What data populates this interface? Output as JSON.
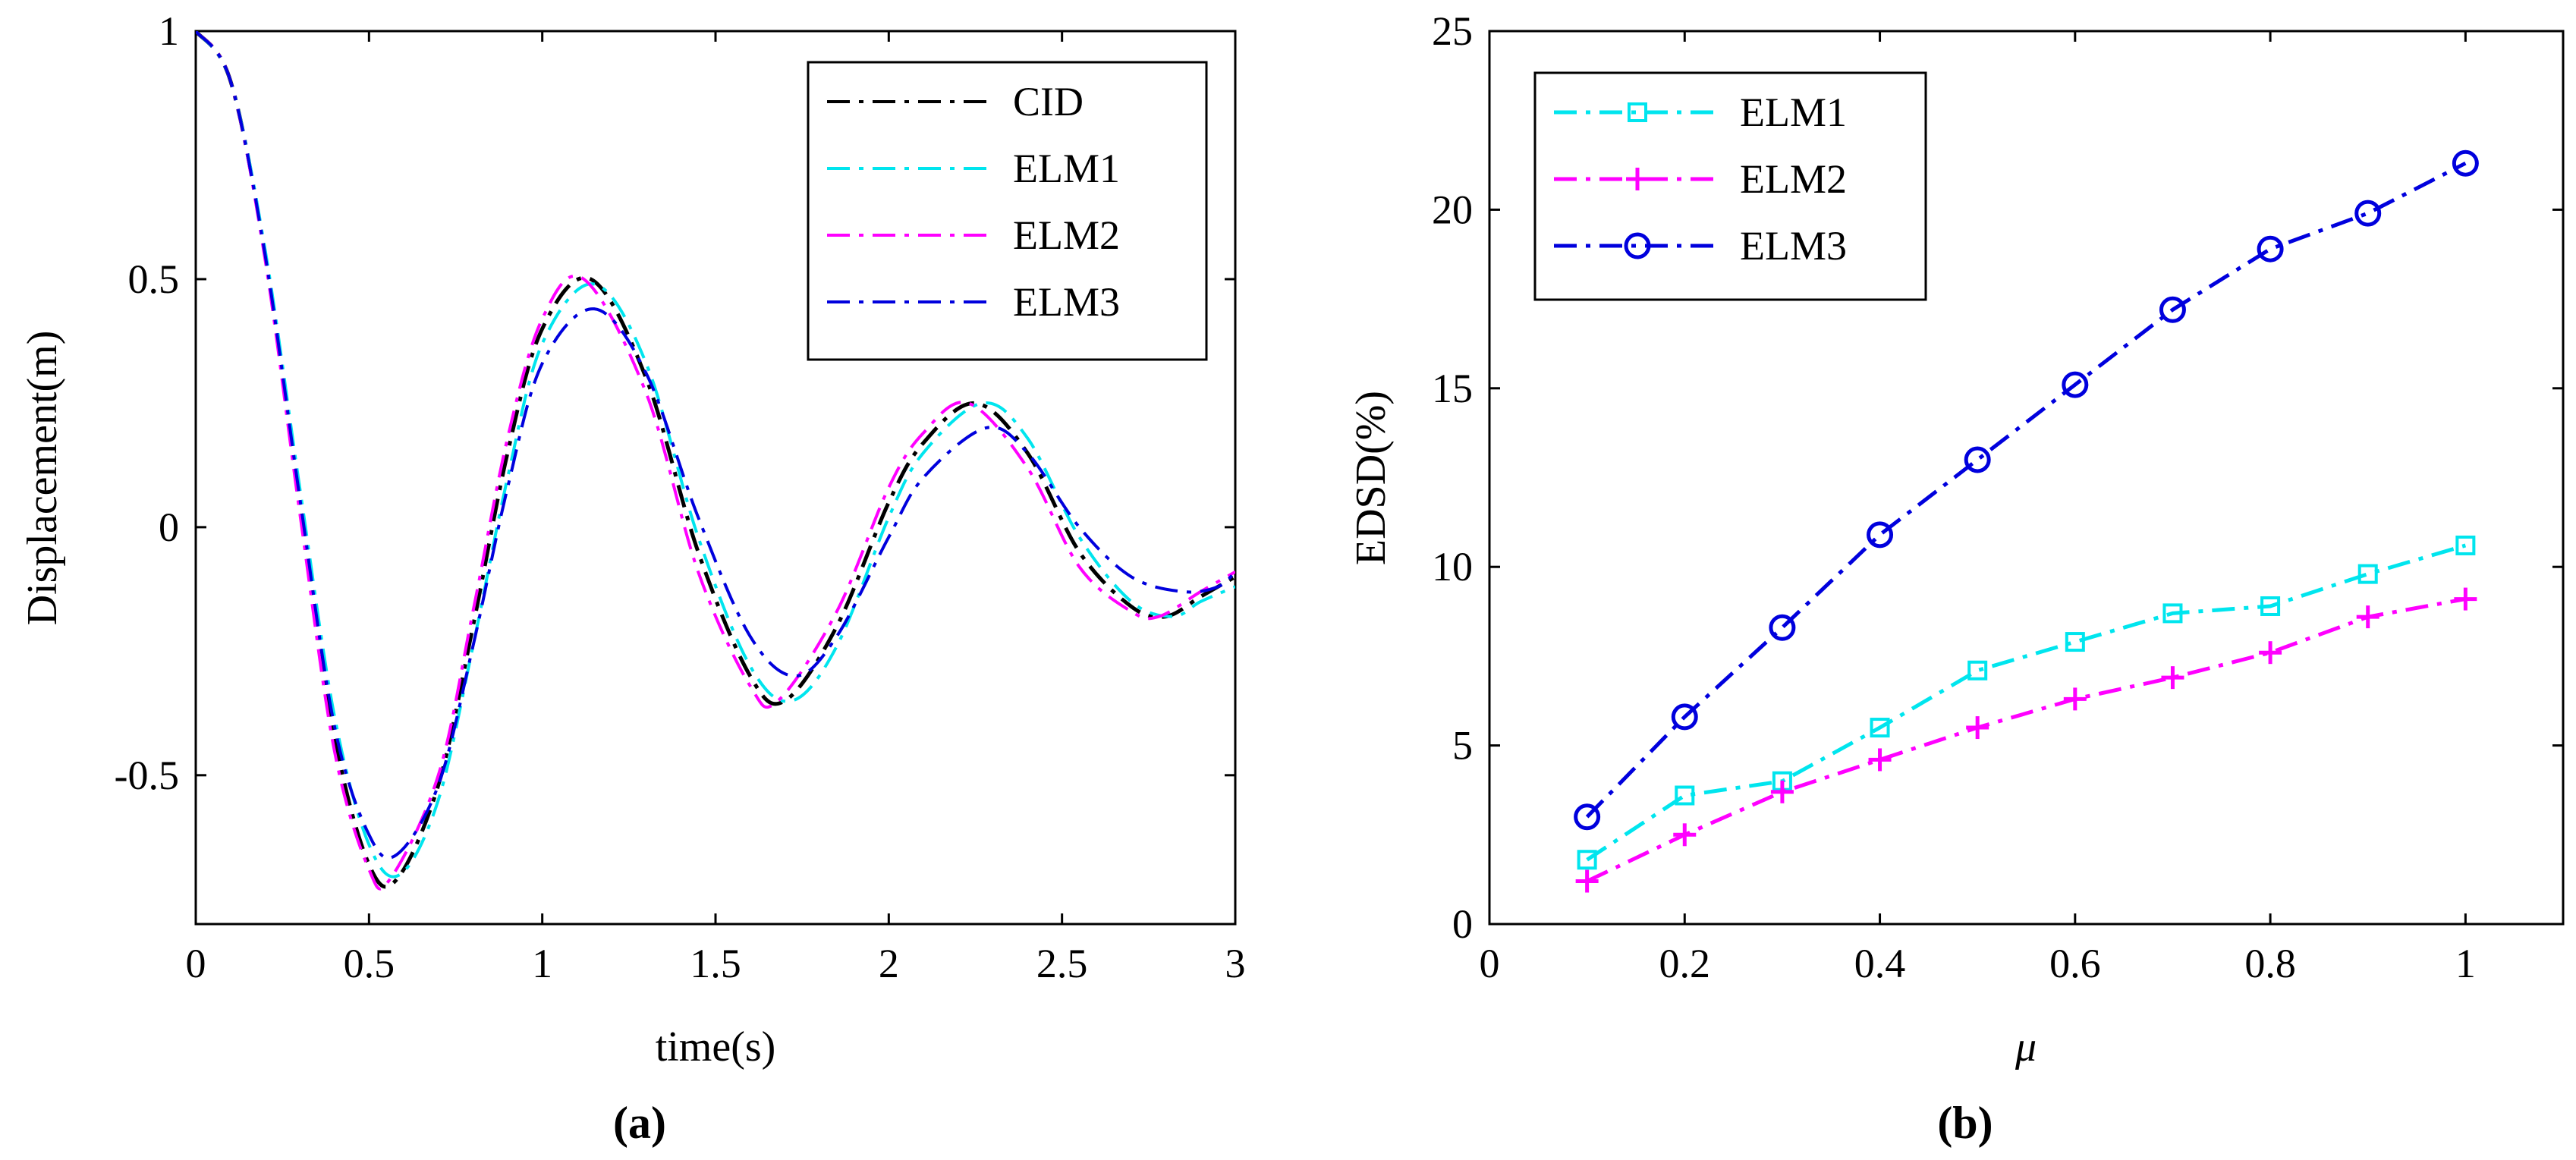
{
  "chart_data": [
    {
      "type": "line",
      "panel_label": "(a)",
      "xlabel": "time(s)",
      "ylabel": "Displacement(m)",
      "xlim": [
        0,
        3
      ],
      "ylim": [
        -0.8,
        1
      ],
      "xticks": [
        0,
        0.5,
        1,
        1.5,
        2,
        2.5,
        3
      ],
      "xtick_labels": [
        "0",
        "0.5",
        "1",
        "1.5",
        "2",
        "2.5",
        "3"
      ],
      "yticks": [
        -0.5,
        0,
        0.5,
        1
      ],
      "ytick_labels": [
        "-0.5",
        "0",
        "0.5",
        "1"
      ],
      "legend_position": "top-right",
      "series": [
        {
          "name": "CID",
          "color": "#000000",
          "marker": "none",
          "x": [
            0,
            0.1,
            0.2,
            0.3,
            0.4,
            0.5,
            0.58,
            0.7,
            0.8,
            0.9,
            1.0,
            1.14,
            1.3,
            1.45,
            1.6,
            1.7,
            1.85,
            2.0,
            2.1,
            2.25,
            2.4,
            2.55,
            2.7,
            2.8,
            2.9,
            3.0
          ],
          "y": [
            1,
            0.9,
            0.55,
            0.05,
            -0.42,
            -0.68,
            -0.71,
            -0.52,
            -0.2,
            0.15,
            0.4,
            0.5,
            0.3,
            -0.05,
            -0.3,
            -0.35,
            -0.2,
            0.05,
            0.17,
            0.25,
            0.15,
            -0.05,
            -0.16,
            -0.18,
            -0.14,
            -0.1
          ]
        },
        {
          "name": "ELM1",
          "color": "#00e5ee",
          "marker": "none",
          "x": [
            0,
            0.1,
            0.2,
            0.3,
            0.4,
            0.5,
            0.59,
            0.7,
            0.8,
            0.9,
            1.0,
            1.15,
            1.3,
            1.45,
            1.6,
            1.72,
            1.85,
            2.0,
            2.1,
            2.27,
            2.4,
            2.55,
            2.7,
            2.82,
            2.9,
            3.0
          ],
          "y": [
            1,
            0.9,
            0.56,
            0.08,
            -0.38,
            -0.64,
            -0.7,
            -0.55,
            -0.24,
            0.1,
            0.37,
            0.49,
            0.33,
            -0.02,
            -0.28,
            -0.35,
            -0.24,
            0.02,
            0.15,
            0.25,
            0.18,
            -0.02,
            -0.15,
            -0.18,
            -0.15,
            -0.12
          ]
        },
        {
          "name": "ELM2",
          "color": "#ff00ff",
          "marker": "none",
          "x": [
            0,
            0.1,
            0.2,
            0.3,
            0.4,
            0.5,
            0.56,
            0.7,
            0.8,
            0.9,
            1.0,
            1.12,
            1.3,
            1.45,
            1.6,
            1.68,
            1.85,
            2.0,
            2.1,
            2.23,
            2.4,
            2.55,
            2.7,
            2.78,
            2.9,
            3.0
          ],
          "y": [
            1,
            0.9,
            0.54,
            0.03,
            -0.45,
            -0.69,
            -0.71,
            -0.5,
            -0.17,
            0.18,
            0.42,
            0.5,
            0.27,
            -0.09,
            -0.32,
            -0.35,
            -0.17,
            0.08,
            0.19,
            0.25,
            0.12,
            -0.08,
            -0.17,
            -0.18,
            -0.13,
            -0.09
          ]
        },
        {
          "name": "ELM3",
          "color": "#0000dd",
          "marker": "none",
          "x": [
            0,
            0.1,
            0.2,
            0.3,
            0.4,
            0.5,
            0.58,
            0.7,
            0.8,
            0.9,
            1.0,
            1.15,
            1.3,
            1.45,
            1.6,
            1.73,
            1.85,
            2.0,
            2.1,
            2.28,
            2.4,
            2.55,
            2.7,
            2.85,
            2.95,
            3.0
          ],
          "y": [
            1,
            0.9,
            0.55,
            0.06,
            -0.4,
            -0.62,
            -0.66,
            -0.52,
            -0.24,
            0.08,
            0.33,
            0.44,
            0.31,
            0.02,
            -0.22,
            -0.3,
            -0.22,
            -0.02,
            0.1,
            0.2,
            0.15,
            0.0,
            -0.1,
            -0.13,
            -0.12,
            -0.09
          ]
        }
      ]
    },
    {
      "type": "line",
      "panel_label": "(b)",
      "xlabel": "μ",
      "ylabel": "EDSD(%)",
      "xlim": [
        0,
        1.1
      ],
      "ylim": [
        0,
        25
      ],
      "xticks": [
        0,
        0.2,
        0.4,
        0.6,
        0.8,
        1
      ],
      "xtick_labels": [
        "0",
        "0.2",
        "0.4",
        "0.6",
        "0.8",
        "1"
      ],
      "yticks": [
        0,
        5,
        10,
        15,
        20,
        25
      ],
      "ytick_labels": [
        "0",
        "5",
        "10",
        "15",
        "20",
        "25"
      ],
      "legend_position": "top-left",
      "x": [
        0.1,
        0.2,
        0.3,
        0.4,
        0.5,
        0.6,
        0.7,
        0.8,
        0.9,
        1.0
      ],
      "series": [
        {
          "name": "ELM1",
          "color": "#00e5ee",
          "marker": "square",
          "values": [
            1.8,
            3.6,
            4.0,
            5.5,
            7.1,
            7.9,
            8.7,
            8.9,
            9.8,
            10.6
          ]
        },
        {
          "name": "ELM2",
          "color": "#ff00ff",
          "marker": "plus",
          "values": [
            1.2,
            2.5,
            3.7,
            4.6,
            5.5,
            6.3,
            6.9,
            7.6,
            8.6,
            9.1
          ]
        },
        {
          "name": "ELM3",
          "color": "#0000dd",
          "marker": "circle",
          "values": [
            3.0,
            5.8,
            8.3,
            10.9,
            13.0,
            15.1,
            17.2,
            18.9,
            19.9,
            21.3
          ]
        }
      ]
    }
  ]
}
